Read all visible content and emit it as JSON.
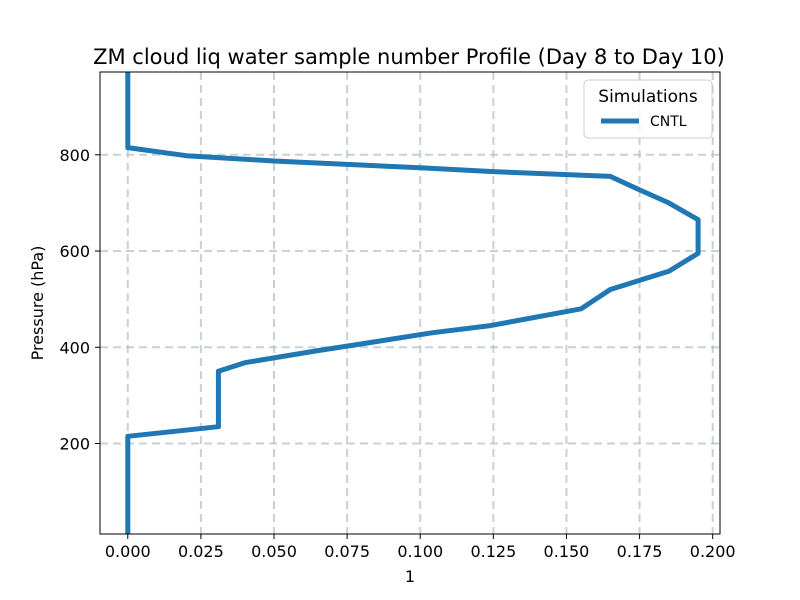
{
  "chart_data": {
    "type": "line",
    "title": "ZM cloud liq water sample number Profile (Day 8 to Day 10)",
    "xlabel": "1",
    "ylabel": "Pressure (hPa)",
    "xlim": [
      -0.0095,
      0.2025
    ],
    "ylim": [
      972,
      12
    ],
    "y_inverted": true,
    "xticks": [
      0.0,
      0.025,
      0.05,
      0.075,
      0.1,
      0.125,
      0.15,
      0.175,
      0.2
    ],
    "xtick_labels": [
      "0.000",
      "0.025",
      "0.050",
      "0.075",
      "0.100",
      "0.125",
      "0.150",
      "0.175",
      "0.200"
    ],
    "yticks": [
      200,
      400,
      600,
      800
    ],
    "ytick_labels": [
      "200",
      "400",
      "600",
      "800"
    ],
    "grid": true,
    "legend": {
      "title": "Simulations",
      "position": "upper right"
    },
    "series": [
      {
        "name": "CNTL",
        "color": "#1f77b4",
        "x": [
          0.0,
          0.0,
          0.0,
          0.031,
          0.031,
          0.04,
          0.052,
          0.065,
          0.083,
          0.104,
          0.124,
          0.155,
          0.165,
          0.185,
          0.195,
          0.195,
          0.185,
          0.175,
          0.165,
          0.125,
          0.1,
          0.075,
          0.05,
          0.02,
          0.0,
          0.0
        ],
        "y": [
          12,
          190,
          215,
          235,
          350,
          368,
          380,
          393,
          410,
          430,
          445,
          480,
          520,
          558,
          595,
          665,
          700,
          727,
          755,
          765,
          773,
          780,
          787,
          798,
          815,
          972
        ]
      }
    ]
  }
}
